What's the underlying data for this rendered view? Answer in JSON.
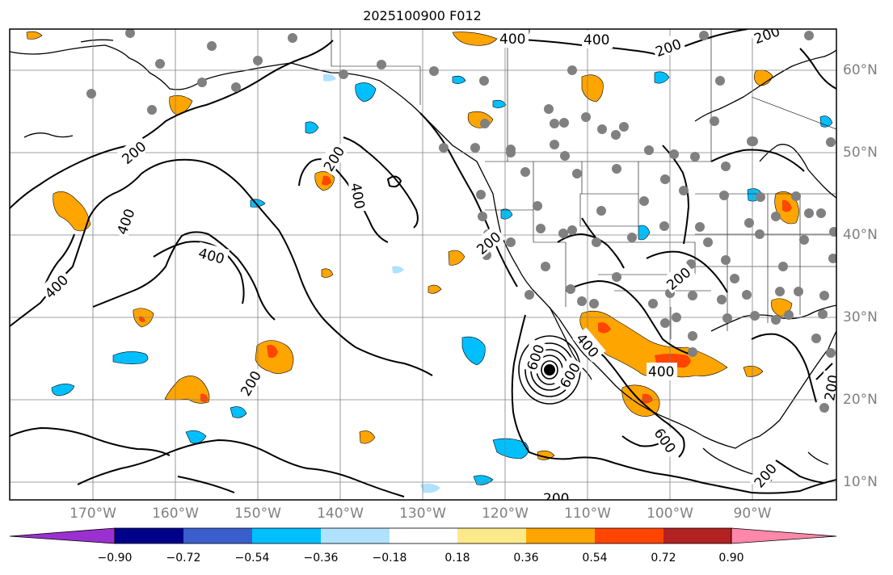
{
  "title": "2025100900 F012",
  "longitude_labels": [
    "170°W",
    "160°W",
    "150°W",
    "140°W",
    "130°W",
    "120°W",
    "110°W",
    "100°W",
    "90°W"
  ],
  "latitude_labels": [
    "60°N",
    "50°N",
    "40°N",
    "30°N",
    "20°N",
    "10°N"
  ],
  "contour_labels": [
    "200",
    "200",
    "200",
    "200",
    "200",
    "200",
    "200",
    "200",
    "200",
    "200",
    "400",
    "400",
    "400",
    "400",
    "400",
    "400",
    "400",
    "400",
    "600",
    "600",
    "600"
  ],
  "colorbar": {
    "ticks": [
      "−0.90",
      "−0.72",
      "−0.54",
      "−0.36",
      "−0.18",
      "0.18",
      "0.36",
      "0.54",
      "0.72",
      "0.90"
    ],
    "colors": [
      "#9b30d0",
      "#00008b",
      "#3a5fcd",
      "#00bfff",
      "#b0e2ff",
      "#ffffff",
      "#fce98a",
      "#ffa500",
      "#ff4500",
      "#b22222",
      "#ff88aa"
    ],
    "extend": "both"
  },
  "colors": {
    "land_outline": "#000000",
    "contour": "#000000",
    "grid": "#808080",
    "station_marker": "#808080"
  }
}
